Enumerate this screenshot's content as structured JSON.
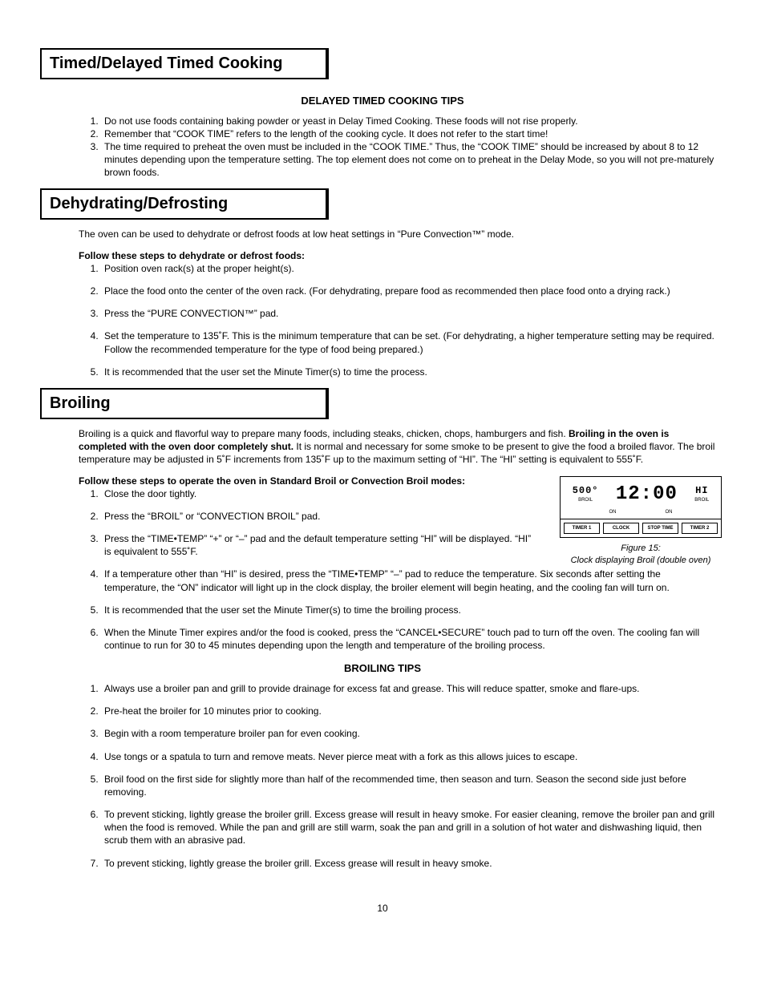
{
  "page_number": "10",
  "sections": {
    "timed": {
      "title": "Timed/Delayed Timed Cooking",
      "subhead": "DELAYED TIMED COOKING TIPS",
      "items": [
        "Do not use foods containing baking powder or yeast in Delay Timed Cooking. These foods will not rise properly.",
        "Remember that “COOK TIME” refers to the length of the cooking cycle. It does not refer to the start time!",
        "The time required to preheat the oven must be included in the “COOK TIME.” Thus, the “COOK TIME” should be increased by about 8 to 12 minutes depending upon the temperature setting. The top element does not come on to preheat in the Delay Mode, so you will not pre-maturely brown foods."
      ]
    },
    "dehyd": {
      "title": "Dehydrating/Defrosting",
      "intro": "The oven can be used to dehydrate or defrost foods at low heat settings in “Pure Convection™” mode.",
      "lead": "Follow these steps to dehydrate or defrost foods:",
      "items": [
        "Position oven rack(s) at the proper height(s).",
        "Place the food onto the center of the oven rack. (For dehydrating, prepare food as recommended then place food onto a drying rack.)",
        "Press the “PURE CONVECTION™” pad.",
        "Set the temperature to 135˚F. This is the minimum temperature that can be set. (For dehydrating, a higher temperature setting may be required. Follow the recommended temperature for the type of food being prepared.)",
        "It is recommended that the user set the Minute Timer(s) to time the process."
      ]
    },
    "broil": {
      "title": "Broiling",
      "intro_pre": "Broiling is a quick and flavorful way to prepare many foods, including steaks, chicken, chops, hamburgers and fish. ",
      "intro_bold": "Broiling in the oven is completed with the oven door completely shut.",
      "intro_post": " It is normal and necessary for some smoke to be present to give the food a broiled flavor. The broil temperature may be adjusted in 5˚F increments from 135˚F up to the maximum setting of “HI”. The “HI” setting is equivalent to 555˚F.",
      "lead": "Follow these steps to operate the oven in Standard Broil or Convection Broil modes:",
      "left_items": [
        "Close the door tightly.",
        "Press the “BROIL” or “CONVECTION BROIL” pad.",
        "Press the “TIME•TEMP” “+” or “–” pad and the default temperature setting “HI” will be displayed. “HI” is equivalent to 555˚F."
      ],
      "cont_items": [
        "If a temperature other than “HI” is desired, press the “TIME•TEMP” “–”  pad to reduce the temperature. Six seconds after setting the temperature, the  “ON” indicator will light up in the clock display, the broiler element will begin heating, and the cooling fan will turn on.",
        "It is recommended that the user set the Minute Timer(s) to time the broiling process.",
        "When the Minute Timer expires and/or the food is cooked, press the “CANCEL•SECURE” touch pad to turn off the oven. The cooling fan will continue to run for 30 to 45 minutes depending upon the length and temperature of the broiling process."
      ],
      "tips_head": "BROILING TIPS",
      "tips": [
        "Always use a broiler pan and grill to provide drainage for excess fat and grease. This will reduce spatter, smoke and flare-ups.",
        "Pre-heat the broiler for 10 minutes prior to cooking.",
        "Begin with a room temperature broiler pan for even cooking.",
        "Use tongs or a spatula to turn and remove meats. Never pierce meat with a fork as this allows juices to escape.",
        "Broil food on the first side for slightly more than half of the recommended time, then season and turn. Season the second side just before removing.",
        "To prevent sticking, lightly grease the broiler grill. Excess grease will result in heavy smoke. For easier cleaning, remove the broiler pan and grill when the food is removed. While the pan and grill are still warm, soak the pan and grill in a solution of hot water and dishwashing liquid, then scrub them with an abrasive pad.",
        "To prevent sticking, lightly grease the broiler grill. Excess grease will result in heavy smoke."
      ]
    },
    "figure": {
      "temp": "500°",
      "temp_label": "BROIL",
      "clock": "12:00",
      "hi": "HI",
      "hi_label": "BROIL",
      "on": "ON",
      "buttons": [
        "TIMER 1",
        "CLOCK",
        "STOP TIME",
        "TIMER 2"
      ],
      "caption1": "Figure 15:",
      "caption2": "Clock displaying Broil (double oven)"
    }
  }
}
